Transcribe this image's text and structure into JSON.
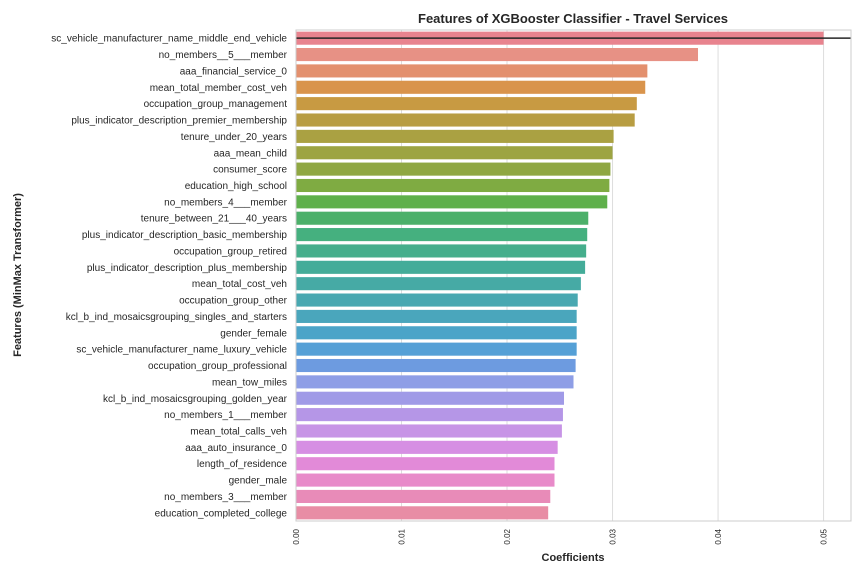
{
  "chart_data": {
    "type": "bar",
    "orientation": "horizontal",
    "title": "Features of XGBooster Classifier - Travel Services",
    "xlabel": "Coefficients",
    "ylabel": "Features (MinMax Transformer)",
    "xlim": [
      0,
      0.0526
    ],
    "xticks": [
      "0.00",
      "0.01",
      "0.02",
      "0.03",
      "0.04",
      "0.05"
    ],
    "grid": "vertical",
    "categories": [
      "sc_vehicle_manufacturer_name_middle_end_vehicle",
      "no_members__5___member",
      "aaa_financial_service_0",
      "mean_total_member_cost_veh",
      "occupation_group_management",
      "plus_indicator_description_premier_membership",
      "tenure_under_20_years",
      "aaa_mean_child",
      "consumer_score",
      "education_high_school",
      "no_members_4___member",
      "tenure_between_21___40_years",
      "plus_indicator_description_basic_membership",
      "occupation_group_retired",
      "plus_indicator_description_plus_membership",
      "mean_total_cost_veh",
      "occupation_group_other",
      "kcl_b_ind_mosaicsgrouping_singles_and_starters",
      "gender_female",
      "sc_vehicle_manufacturer_name_luxury_vehicle",
      "occupation_group_professional",
      "mean_tow_miles",
      "kcl_b_ind_mosaicsgrouping_golden_year",
      "no_members_1___member",
      "mean_total_calls_veh",
      "aaa_auto_insurance_0",
      "length_of_residence",
      "gender_male",
      "no_members_3___member",
      "education_completed_college"
    ],
    "values": [
      0.05,
      0.0381,
      0.0333,
      0.0331,
      0.0323,
      0.0321,
      0.0301,
      0.03,
      0.0298,
      0.0297,
      0.0295,
      0.0277,
      0.0276,
      0.0275,
      0.0274,
      0.027,
      0.0267,
      0.0266,
      0.0266,
      0.0266,
      0.0265,
      0.0263,
      0.0254,
      0.0253,
      0.0252,
      0.0248,
      0.0245,
      0.0245,
      0.0241,
      0.0239
    ],
    "colors": [
      "#e8838e",
      "#e79185",
      "#e3906e",
      "#d9944c",
      "#c89a42",
      "#b89d42",
      "#aaa142",
      "#9da442",
      "#8fa742",
      "#7fab42",
      "#5fb04b",
      "#4cb06a",
      "#45b07f",
      "#45ae8c",
      "#44ac99",
      "#46aaa5",
      "#48a8b1",
      "#4aa6bc",
      "#4ba4c8",
      "#55a0d6",
      "#6d9be0",
      "#8e9ee6",
      "#a09ae7",
      "#b596e7",
      "#c794e6",
      "#d68fe3",
      "#e28ad8",
      "#e88ac9",
      "#e88bb8",
      "#e88da5"
    ],
    "reference_line": {
      "value": 0.05,
      "color": "#262626"
    }
  }
}
